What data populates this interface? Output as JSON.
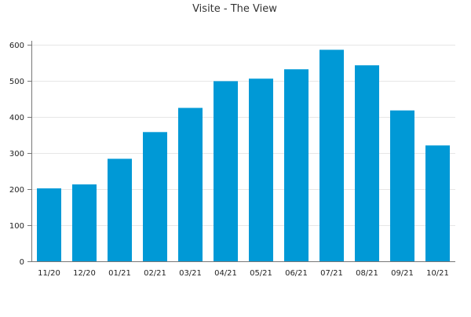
{
  "chart_data": {
    "type": "bar",
    "title": "Visite - The View",
    "xlabel": "",
    "ylabel": "",
    "categories": [
      "11/20",
      "12/20",
      "01/21",
      "02/21",
      "03/21",
      "04/21",
      "05/21",
      "06/21",
      "07/21",
      "08/21",
      "09/21",
      "10/21"
    ],
    "values": [
      202,
      213,
      284,
      358,
      425,
      499,
      506,
      532,
      586,
      543,
      418,
      321
    ],
    "ylim": [
      0,
      600
    ],
    "yticks": [
      "0",
      "100",
      "200",
      "300",
      "400",
      "500",
      "600"
    ],
    "grid": true,
    "legend": "none",
    "colors": {
      "bar": "#0099D6",
      "grid": "#E6E6E6",
      "axis": "#777777"
    }
  }
}
